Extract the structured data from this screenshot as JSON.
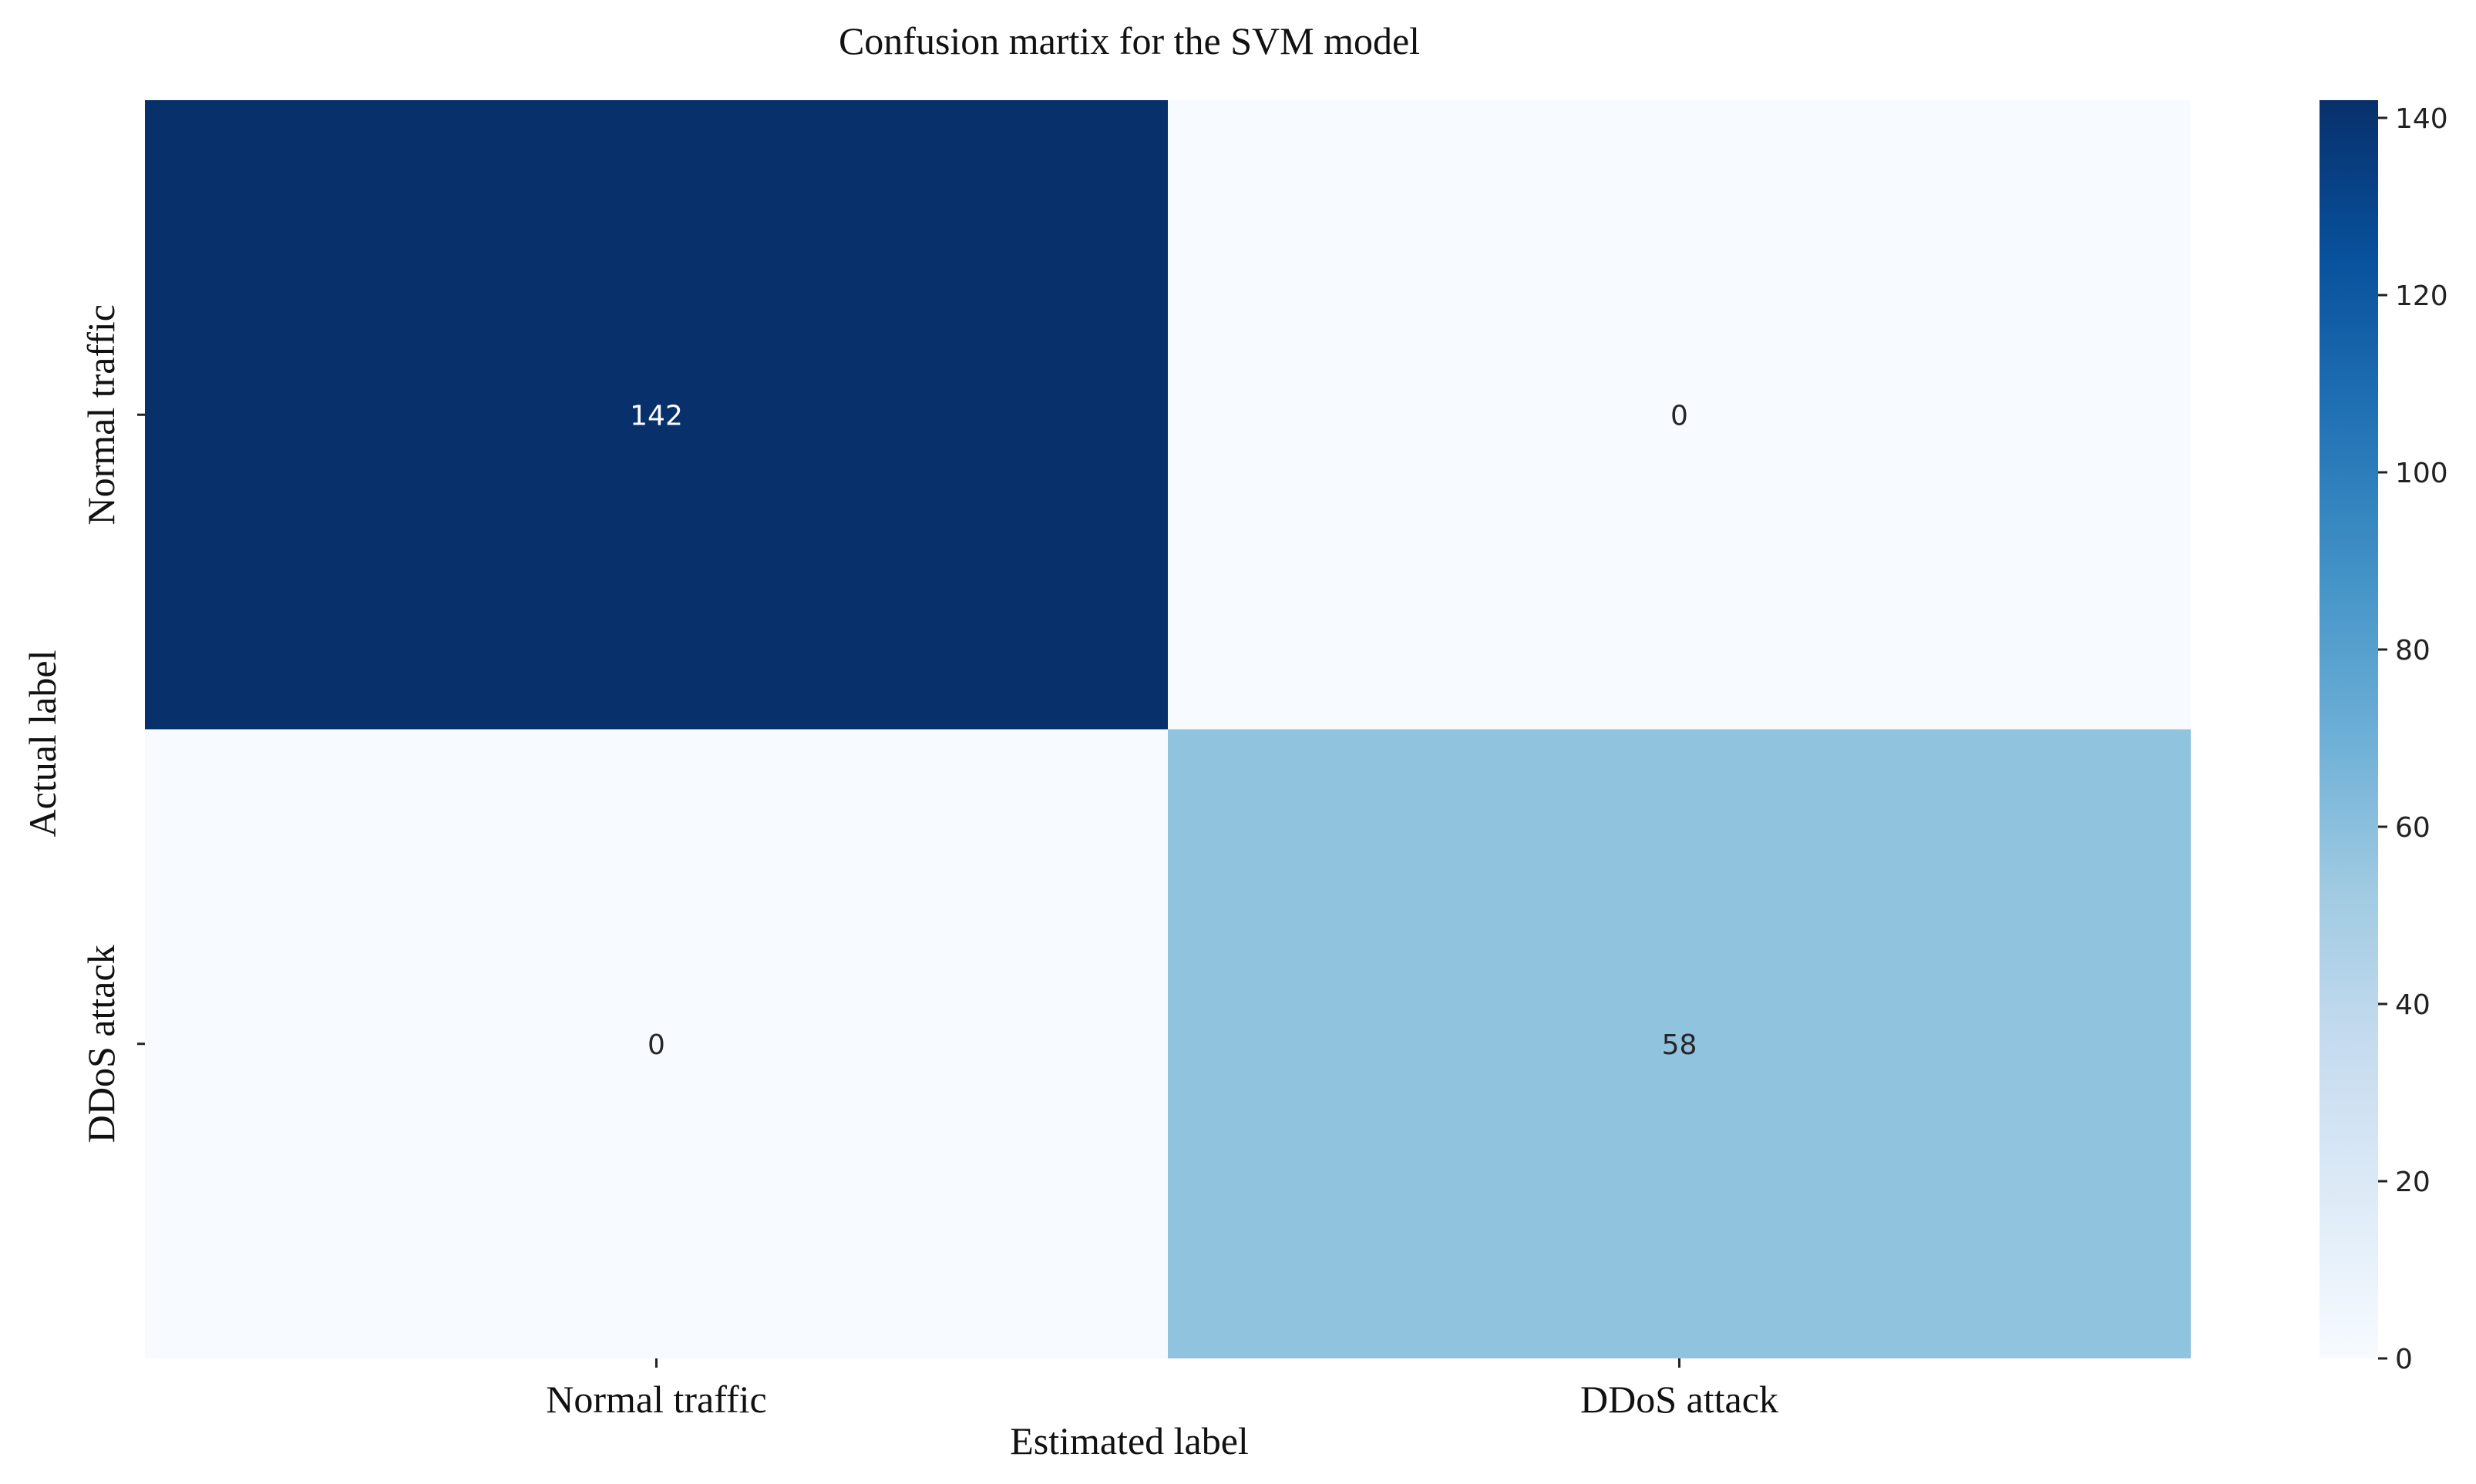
{
  "chart_data": {
    "type": "heatmap",
    "title": "Confusion martix for the SVM model",
    "xlabel": "Estimated label",
    "ylabel": "Actual label",
    "x_categories": [
      "Normal traffic",
      "DDoS attack"
    ],
    "y_categories": [
      "Normal traffic",
      "DDoS attack"
    ],
    "values": [
      [
        142,
        0
      ],
      [
        0,
        58
      ]
    ],
    "colormap": "Blues",
    "color_range": [
      0,
      142
    ],
    "colorbar_ticks": [
      0,
      20,
      40,
      60,
      80,
      100,
      120,
      140
    ],
    "colorbar_tick_labels": [
      "0",
      "20",
      "40",
      "60",
      "80",
      "100",
      "120",
      "140"
    ],
    "colors": {
      "low": "#f7fbff",
      "high": "#08306b",
      "cell_text_dark_bg": "#ffffff",
      "cell_text_light_bg": "#262626"
    }
  }
}
